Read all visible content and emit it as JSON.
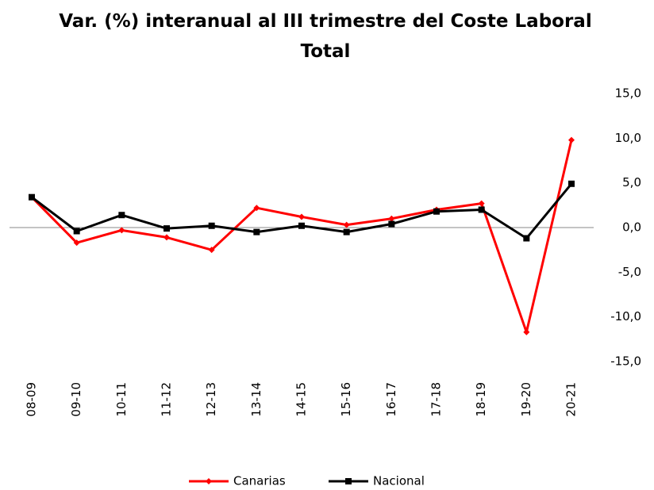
{
  "chart_data": {
    "type": "line",
    "title": "Var. (%) interanual al III trimestre del Coste Laboral Total",
    "categories": [
      "08-09",
      "09-10",
      "10-11",
      "11-12",
      "12-13",
      "13-14",
      "14-15",
      "15-16",
      "16-17",
      "17-18",
      "18-19",
      "19-20",
      "20-21"
    ],
    "series": [
      {
        "name": "Canarias",
        "color": "#ff0000",
        "values": [
          3.4,
          -1.7,
          -0.3,
          -1.1,
          -2.5,
          2.2,
          1.2,
          0.3,
          1.0,
          2.0,
          2.7,
          -11.7,
          9.8
        ]
      },
      {
        "name": "Nacional",
        "color": "#000000",
        "values": [
          3.4,
          -0.4,
          1.4,
          -0.1,
          0.2,
          -0.5,
          0.2,
          -0.5,
          0.4,
          1.8,
          2.0,
          -1.2,
          4.9
        ]
      }
    ],
    "ylim": [
      -15,
      15
    ],
    "yticks": [
      {
        "value": -15,
        "label": "-15,0"
      },
      {
        "value": -10,
        "label": "-10,0"
      },
      {
        "value": -5,
        "label": "-5,0"
      },
      {
        "value": 0,
        "label": "0,0"
      },
      {
        "value": 5,
        "label": "5,0"
      },
      {
        "value": 10,
        "label": "10,0"
      },
      {
        "value": 15,
        "label": "15,0"
      }
    ],
    "legend": "bottom"
  }
}
